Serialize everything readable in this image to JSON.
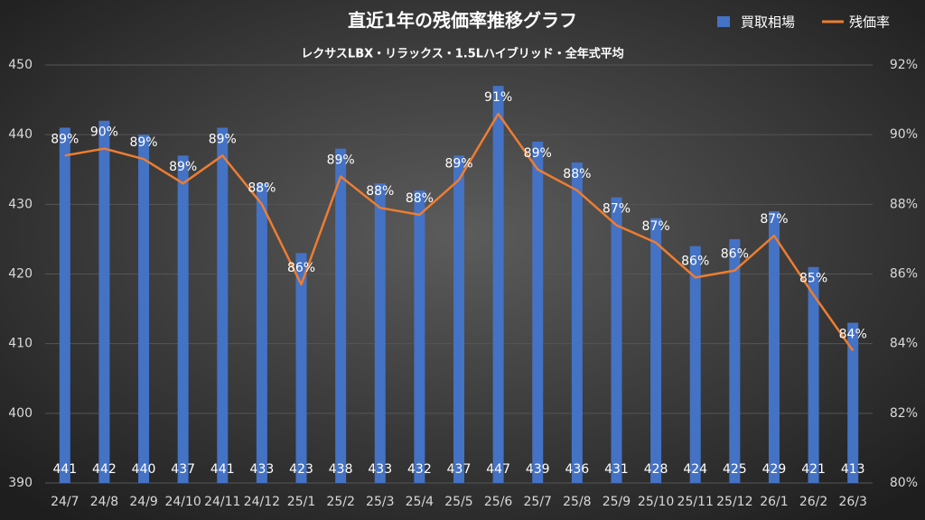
{
  "chart_data": {
    "type": "bar",
    "title": "直近1年の残価率推移グラフ",
    "subtitle": "レクサスLBX・リラックス・1.5Lハイブリッド・全年式平均",
    "categories": [
      "24/7",
      "24/8",
      "24/9",
      "24/10",
      "24/11",
      "24/12",
      "25/1",
      "25/2",
      "25/3",
      "25/4",
      "25/5",
      "25/6",
      "25/7",
      "25/8",
      "25/9",
      "25/10",
      "25/11",
      "25/12",
      "26/1",
      "26/2",
      "26/3"
    ],
    "series": [
      {
        "name": "買取相場",
        "type": "bar",
        "color": "#4472c4",
        "values": [
          441,
          442,
          440,
          437,
          441,
          433,
          423,
          438,
          433,
          432,
          437,
          447,
          439,
          436,
          431,
          428,
          424,
          425,
          429,
          421,
          413
        ]
      },
      {
        "name": "残価率",
        "type": "line",
        "axis": "y2",
        "color": "#ed7d31",
        "values": [
          89.4,
          89.6,
          89.3,
          88.6,
          89.4,
          88.0,
          85.7,
          88.8,
          87.9,
          87.7,
          88.7,
          90.6,
          89.0,
          88.4,
          87.4,
          86.9,
          85.9,
          86.1,
          87.1,
          85.4,
          83.8
        ],
        "value_labels": [
          "89%",
          "90%",
          "89%",
          "89%",
          "89%",
          "88%",
          "86%",
          "89%",
          "88%",
          "88%",
          "89%",
          "91%",
          "89%",
          "88%",
          "87%",
          "87%",
          "86%",
          "86%",
          "87%",
          "85%",
          "84%"
        ]
      }
    ],
    "ylim": [
      390,
      450
    ],
    "yticks": [
      390,
      400,
      410,
      420,
      430,
      440,
      450
    ],
    "y2lim": [
      80,
      92
    ],
    "y2ticks": [
      {
        "value": 80,
        "label": "80%"
      },
      {
        "value": 82,
        "label": "82%"
      },
      {
        "value": 84,
        "label": "84%"
      },
      {
        "value": 86,
        "label": "86%"
      },
      {
        "value": 88,
        "label": "88%"
      },
      {
        "value": 90,
        "label": "90%"
      },
      {
        "value": 92,
        "label": "92%"
      }
    ],
    "grid": true,
    "legend": "top-right"
  }
}
